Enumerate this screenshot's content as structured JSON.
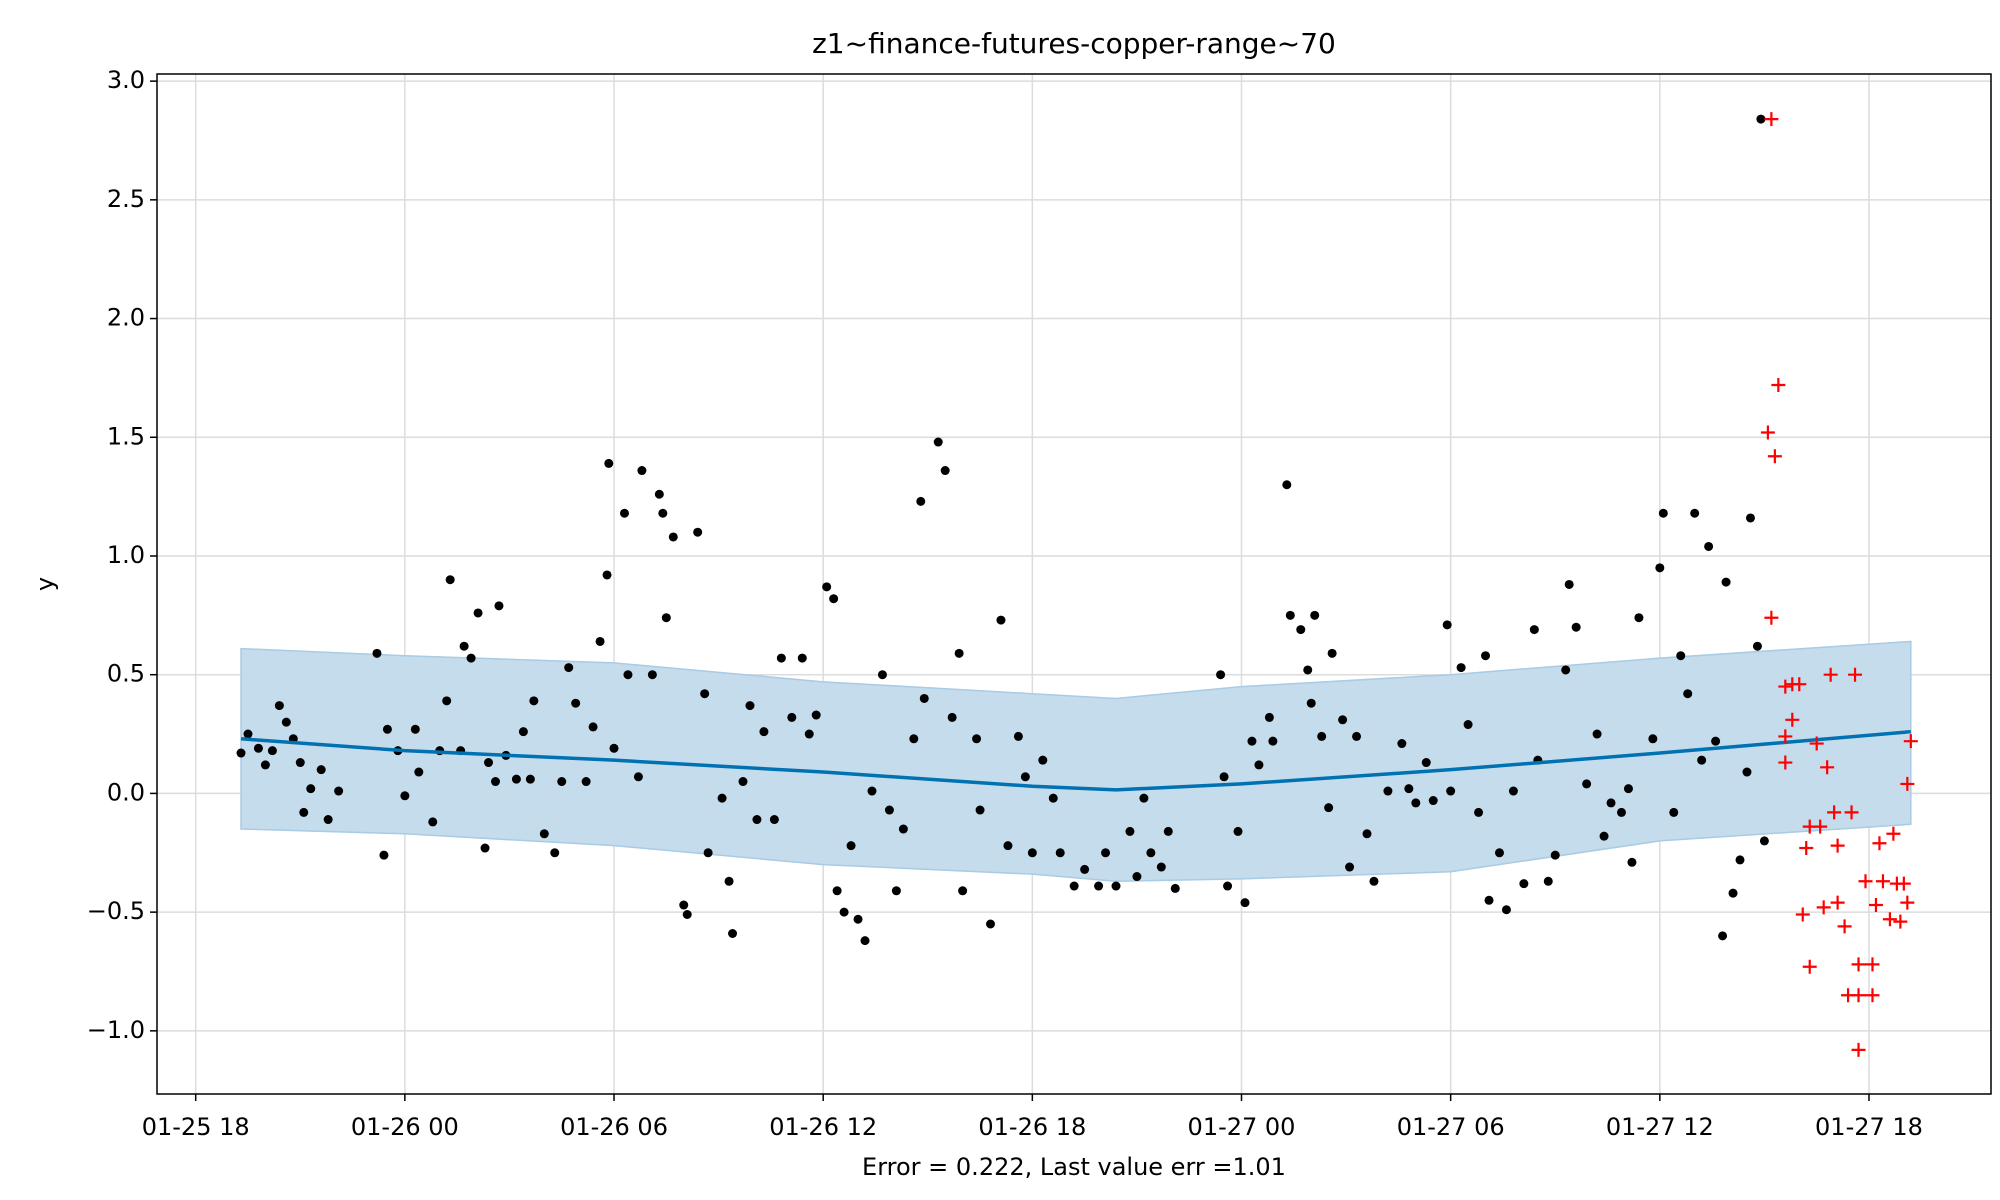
{
  "chart_data": {
    "type": "forecast",
    "title": "z1~finance-futures-copper-range~70",
    "x_label": "Error = 0.222, Last value err =1.01",
    "y_label": "y",
    "xlim": [
      -1.11,
      51.5
    ],
    "ylim": [
      -1.266,
      3.03
    ],
    "grid": true,
    "xticks": [
      {
        "value": 0,
        "label": "01-25 18"
      },
      {
        "value": 6,
        "label": "01-26 00"
      },
      {
        "value": 12,
        "label": "01-26 06"
      },
      {
        "value": 18,
        "label": "01-26 12"
      },
      {
        "value": 24,
        "label": "01-26 18"
      },
      {
        "value": 30,
        "label": "01-27 00"
      },
      {
        "value": 36,
        "label": "01-27 06"
      },
      {
        "value": 42,
        "label": "01-27 12"
      },
      {
        "value": 48,
        "label": "01-27 18"
      }
    ],
    "yticks": [
      {
        "value": -1,
        "label": "−1.0"
      },
      {
        "value": -0.5,
        "label": "−0.5"
      },
      {
        "value": 0,
        "label": "0.0"
      },
      {
        "value": 0.5,
        "label": "0.5"
      },
      {
        "value": 1,
        "label": "1.0"
      },
      {
        "value": 1.5,
        "label": "1.5"
      },
      {
        "value": 2,
        "label": "2.0"
      },
      {
        "value": 2.5,
        "label": "2.5"
      },
      {
        "value": 3,
        "label": "3.0"
      }
    ],
    "band": {
      "color": "#c5dcec",
      "x": [
        1.3,
        6,
        12,
        18,
        24,
        26.4,
        30,
        36,
        42,
        49.2
      ],
      "upper": [
        0.61,
        0.58,
        0.55,
        0.47,
        0.42,
        0.4,
        0.45,
        0.5,
        0.57,
        0.64
      ],
      "lower": [
        -0.15,
        -0.17,
        -0.22,
        -0.3,
        -0.34,
        -0.37,
        -0.36,
        -0.33,
        -0.2,
        -0.13
      ]
    },
    "series": [
      {
        "style": "line",
        "color": "#0072b2",
        "x": [
          1.3,
          6,
          12,
          18,
          24,
          26.4,
          30,
          36,
          42,
          49.2
        ],
        "values": [
          0.23,
          0.18,
          0.14,
          0.09,
          0.03,
          0.015,
          0.04,
          0.1,
          0.17,
          0.26
        ]
      },
      {
        "style": "dots",
        "color": "#000000",
        "x": [
          1.3,
          1.5,
          1.8,
          2.0,
          2.2,
          2.4,
          2.6,
          2.8,
          3.0,
          3.1,
          3.3,
          3.6,
          3.8,
          4.1,
          5.2,
          5.4,
          5.5,
          5.8,
          6.0,
          6.3,
          6.4,
          6.8,
          7.0,
          7.2,
          7.3,
          7.6,
          7.7,
          7.9,
          8.1,
          8.3,
          8.4,
          8.6,
          8.7,
          8.9,
          9.2,
          9.4,
          9.6,
          9.7,
          10.0,
          10.3,
          10.5,
          10.7,
          10.9,
          11.2,
          11.4,
          11.6,
          11.8,
          11.85,
          12.0,
          12.3,
          12.4,
          12.7,
          12.8,
          13.1,
          13.3,
          13.4,
          13.5,
          13.7,
          14.0,
          14.1,
          14.4,
          14.6,
          14.7,
          15.1,
          15.3,
          15.4,
          15.7,
          15.9,
          16.1,
          16.3,
          16.6,
          16.8,
          17.1,
          17.4,
          17.6,
          17.8,
          18.1,
          18.3,
          18.4,
          18.6,
          18.8,
          19.0,
          19.2,
          19.4,
          19.7,
          19.9,
          20.1,
          20.3,
          20.6,
          20.8,
          20.9,
          21.3,
          21.5,
          21.7,
          21.9,
          22.0,
          22.4,
          22.5,
          22.8,
          23.1,
          23.3,
          23.6,
          23.8,
          24.0,
          24.3,
          24.6,
          24.8,
          25.2,
          25.5,
          25.9,
          26.1,
          26.4,
          26.8,
          27.0,
          27.2,
          27.4,
          27.7,
          27.9,
          28.1,
          29.4,
          29.5,
          29.6,
          29.9,
          30.1,
          30.3,
          30.5,
          30.8,
          30.9,
          31.3,
          31.4,
          31.7,
          31.9,
          32.0,
          32.1,
          32.3,
          32.5,
          32.6,
          32.9,
          33.1,
          33.3,
          33.6,
          33.8,
          34.2,
          34.6,
          34.8,
          35.0,
          35.3,
          35.5,
          35.9,
          36.0,
          36.3,
          36.5,
          36.8,
          37.0,
          37.1,
          37.4,
          37.6,
          37.8,
          38.1,
          38.4,
          38.5,
          38.8,
          39.0,
          39.3,
          39.4,
          39.6,
          39.9,
          40.2,
          40.4,
          40.6,
          40.9,
          41.1,
          41.2,
          41.4,
          41.8,
          42.0,
          42.1,
          42.4,
          42.6,
          42.8,
          43.0,
          43.2,
          43.4,
          43.6,
          43.8,
          43.9,
          44.1,
          44.3,
          44.5,
          44.6,
          44.8,
          44.9,
          45.0
        ],
        "values": [
          0.17,
          0.25,
          0.19,
          0.12,
          0.18,
          0.37,
          0.3,
          0.23,
          0.13,
          -0.08,
          0.02,
          0.1,
          -0.11,
          0.01,
          0.59,
          -0.26,
          0.27,
          0.18,
          -0.01,
          0.27,
          0.09,
          -0.12,
          0.18,
          0.39,
          0.9,
          0.18,
          0.62,
          0.57,
          0.76,
          -0.23,
          0.13,
          0.05,
          0.79,
          0.16,
          0.06,
          0.26,
          0.06,
          0.39,
          -0.17,
          -0.25,
          0.05,
          0.53,
          0.38,
          0.05,
          0.28,
          0.64,
          0.92,
          1.39,
          0.19,
          1.18,
          0.5,
          0.07,
          1.36,
          0.5,
          1.26,
          1.18,
          0.74,
          1.08,
          -0.47,
          -0.51,
          1.1,
          0.42,
          -0.25,
          -0.02,
          -0.37,
          -0.59,
          0.05,
          0.37,
          -0.11,
          0.26,
          -0.11,
          0.57,
          0.32,
          0.57,
          0.25,
          0.33,
          0.87,
          0.82,
          -0.41,
          -0.5,
          -0.22,
          -0.53,
          -0.62,
          0.01,
          0.5,
          -0.07,
          -0.41,
          -0.15,
          0.23,
          1.23,
          0.4,
          1.48,
          1.36,
          0.32,
          0.59,
          -0.41,
          0.23,
          -0.07,
          -0.55,
          0.73,
          -0.22,
          0.24,
          0.07,
          -0.25,
          0.14,
          -0.02,
          -0.25,
          -0.39,
          -0.32,
          -0.39,
          -0.25,
          -0.39,
          -0.16,
          -0.35,
          -0.02,
          -0.25,
          -0.31,
          -0.16,
          -0.4,
          0.5,
          0.07,
          -0.39,
          -0.16,
          -0.46,
          0.22,
          0.12,
          0.32,
          0.22,
          1.3,
          0.75,
          0.69,
          0.52,
          0.38,
          0.75,
          0.24,
          -0.06,
          0.59,
          0.31,
          -0.31,
          0.24,
          -0.17,
          -0.37,
          0.01,
          0.21,
          0.02,
          -0.04,
          0.13,
          -0.03,
          0.71,
          0.01,
          0.53,
          0.29,
          -0.08,
          0.58,
          -0.45,
          -0.25,
          -0.49,
          0.01,
          -0.38,
          0.69,
          0.14,
          -0.37,
          -0.26,
          0.52,
          0.88,
          0.7,
          0.04,
          0.25,
          -0.18,
          -0.04,
          -0.08,
          0.02,
          -0.29,
          0.74,
          0.23,
          0.95,
          1.18,
          -0.08,
          0.58,
          0.42,
          1.18,
          0.14,
          1.04,
          0.22,
          -0.6,
          0.89,
          -0.42,
          -0.28,
          0.09,
          1.16,
          0.62,
          2.84,
          -0.2
        ]
      },
      {
        "style": "plus",
        "color": "#ff0000",
        "x": [
          45.1,
          45.2,
          45.2,
          45.3,
          45.4,
          45.6,
          45.6,
          45.6,
          45.8,
          45.8,
          46.0,
          46.1,
          46.2,
          46.3,
          46.3,
          46.5,
          46.6,
          46.7,
          46.8,
          46.9,
          47.0,
          47.1,
          47.1,
          47.3,
          47.4,
          47.5,
          47.6,
          47.7,
          47.7,
          47.7,
          47.9,
          48.1,
          48.1,
          48.2,
          48.3,
          48.4,
          48.6,
          48.7,
          48.8,
          48.9,
          49.0,
          49.1,
          49.1,
          49.2
        ],
        "values": [
          1.52,
          2.84,
          0.74,
          1.42,
          1.72,
          0.45,
          0.24,
          0.13,
          0.46,
          0.31,
          0.46,
          -0.51,
          -0.23,
          -0.14,
          -0.73,
          0.21,
          -0.14,
          -0.48,
          0.11,
          0.5,
          -0.08,
          -0.22,
          -0.46,
          -0.56,
          -0.85,
          -0.08,
          0.5,
          -0.72,
          -0.85,
          -1.08,
          -0.37,
          -0.72,
          -0.85,
          -0.47,
          -0.21,
          -0.37,
          -0.53,
          -0.17,
          -0.38,
          -0.54,
          -0.38,
          -0.46,
          0.04,
          0.22
        ]
      }
    ]
  }
}
